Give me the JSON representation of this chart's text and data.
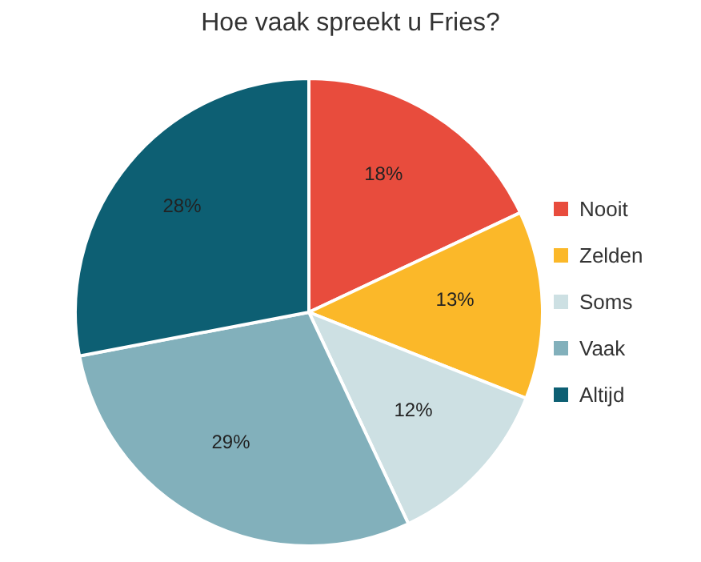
{
  "chart_data": {
    "type": "pie",
    "title": "Hoe vaak spreekt u Fries?",
    "categories": [
      "Nooit",
      "Zelden",
      "Soms",
      "Vaak",
      "Altijd"
    ],
    "values": [
      18,
      13,
      12,
      29,
      28
    ],
    "value_labels": [
      "18%",
      "13%",
      "12%",
      "29%",
      "28%"
    ],
    "colors": [
      "#e84c3d",
      "#fbb829",
      "#cde0e3",
      "#82b0bb",
      "#0d5f73"
    ],
    "legend": "right"
  }
}
